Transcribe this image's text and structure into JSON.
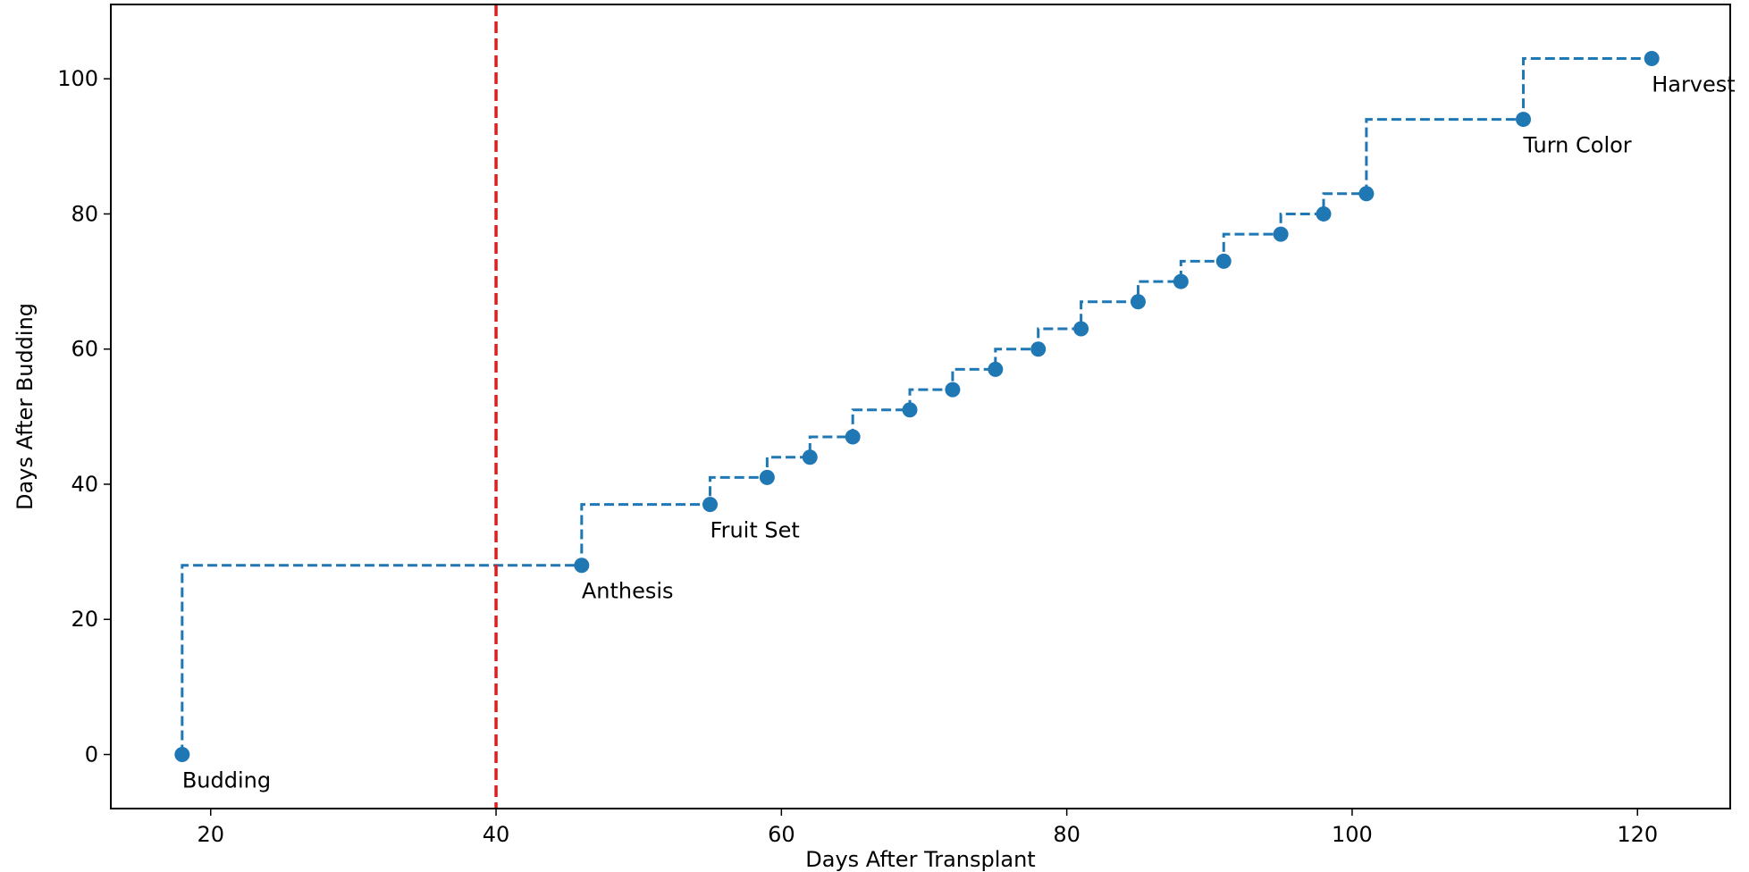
{
  "chart_data": {
    "type": "line",
    "title": "",
    "xlabel": "Days After Transplant",
    "ylabel": "Days After Budding",
    "xlim": [
      13,
      126.5
    ],
    "ylim": [
      -8,
      111
    ],
    "x_ticks": [
      20,
      40,
      60,
      80,
      100,
      120
    ],
    "y_ticks": [
      0,
      20,
      40,
      60,
      80,
      100
    ],
    "grid": false,
    "step": "post",
    "series": [
      {
        "color": "#1f77b4",
        "line_style": "dashed",
        "marker": "circle",
        "points": [
          {
            "x": 18,
            "y": 0
          },
          {
            "x": 46,
            "y": 28
          },
          {
            "x": 55,
            "y": 37
          },
          {
            "x": 59,
            "y": 41
          },
          {
            "x": 62,
            "y": 44
          },
          {
            "x": 65,
            "y": 47
          },
          {
            "x": 69,
            "y": 51
          },
          {
            "x": 72,
            "y": 54
          },
          {
            "x": 75,
            "y": 57
          },
          {
            "x": 78,
            "y": 60
          },
          {
            "x": 81,
            "y": 63
          },
          {
            "x": 85,
            "y": 67
          },
          {
            "x": 88,
            "y": 70
          },
          {
            "x": 91,
            "y": 73
          },
          {
            "x": 95,
            "y": 77
          },
          {
            "x": 98,
            "y": 80
          },
          {
            "x": 101,
            "y": 83
          },
          {
            "x": 112,
            "y": 94
          },
          {
            "x": 121,
            "y": 103
          }
        ]
      }
    ],
    "annotations": [
      {
        "text": "Budding",
        "x": 18,
        "y": 0
      },
      {
        "text": "Anthesis",
        "x": 46,
        "y": 28
      },
      {
        "text": "Fruit Set",
        "x": 55,
        "y": 37
      },
      {
        "text": "Turn Color",
        "x": 112,
        "y": 94
      },
      {
        "text": "Harvest",
        "x": 121,
        "y": 103
      }
    ],
    "reference_line": {
      "orientation": "vertical",
      "x": 40,
      "color": "#e41a1c",
      "line_style": "dashed"
    }
  }
}
